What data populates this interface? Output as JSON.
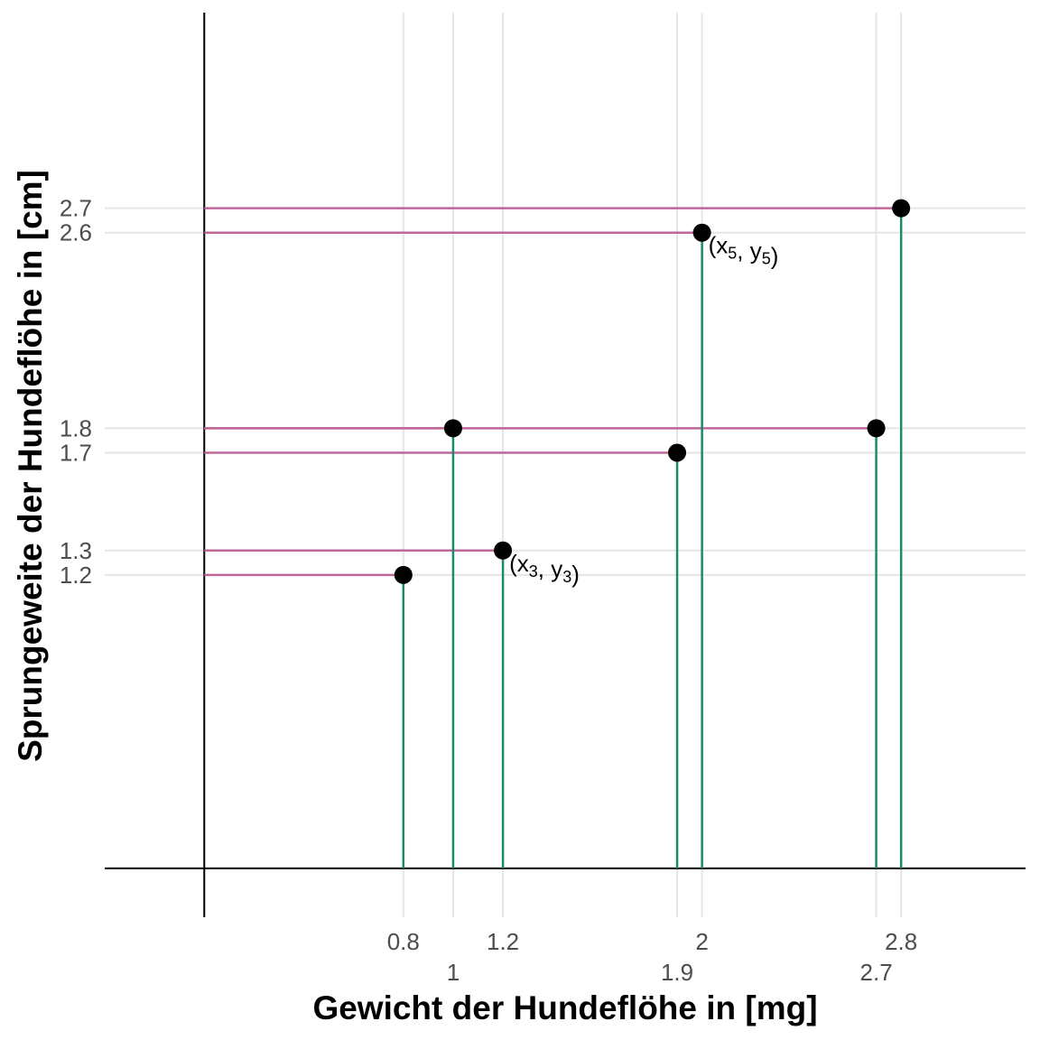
{
  "chart_data": {
    "type": "scatter",
    "xlabel": "Gewicht der Hundeflöhe in [mg]",
    "ylabel": "Sprungeweite der Hundeflöhe in [cm]",
    "xlim": [
      -0.4,
      3.3
    ],
    "ylim": [
      -0.2,
      3.5
    ],
    "grid": true,
    "points": [
      {
        "x": 0.8,
        "y": 1.2
      },
      {
        "x": 1.0,
        "y": 1.8
      },
      {
        "x": 1.2,
        "y": 1.3
      },
      {
        "x": 1.9,
        "y": 1.7
      },
      {
        "x": 2.0,
        "y": 2.6
      },
      {
        "x": 2.7,
        "y": 1.8
      },
      {
        "x": 2.8,
        "y": 2.7
      }
    ],
    "x_ticks": [
      {
        "value": 0.8,
        "label": "0.8",
        "row": 0
      },
      {
        "value": 1.0,
        "label": "1",
        "row": 1
      },
      {
        "value": 1.2,
        "label": "1.2",
        "row": 0
      },
      {
        "value": 1.9,
        "label": "1.9",
        "row": 1
      },
      {
        "value": 2.0,
        "label": "2",
        "row": 0
      },
      {
        "value": 2.7,
        "label": "2.7",
        "row": 1
      },
      {
        "value": 2.8,
        "label": "2.8",
        "row": 0
      }
    ],
    "y_ticks": [
      {
        "value": 1.2,
        "label": "1.2"
      },
      {
        "value": 1.3,
        "label": "1.3"
      },
      {
        "value": 1.7,
        "label": "1.7"
      },
      {
        "value": 1.8,
        "label": "1.8"
      },
      {
        "value": 2.6,
        "label": "2.6"
      },
      {
        "value": 2.7,
        "label": "2.7"
      }
    ],
    "annotations": [
      {
        "x": 1.2,
        "y": 1.3,
        "var1": "x",
        "sub1": "3",
        "var2": "y",
        "sub2": "3"
      },
      {
        "x": 2.0,
        "y": 2.6,
        "var1": "x",
        "sub1": "5",
        "var2": "y",
        "sub2": "5"
      }
    ],
    "colors": {
      "horizontal_segments": "#c0679a",
      "vertical_segments": "#1b8a6b",
      "points": "#000000",
      "grid": "#e6e6e6",
      "axes": "#000000"
    }
  }
}
